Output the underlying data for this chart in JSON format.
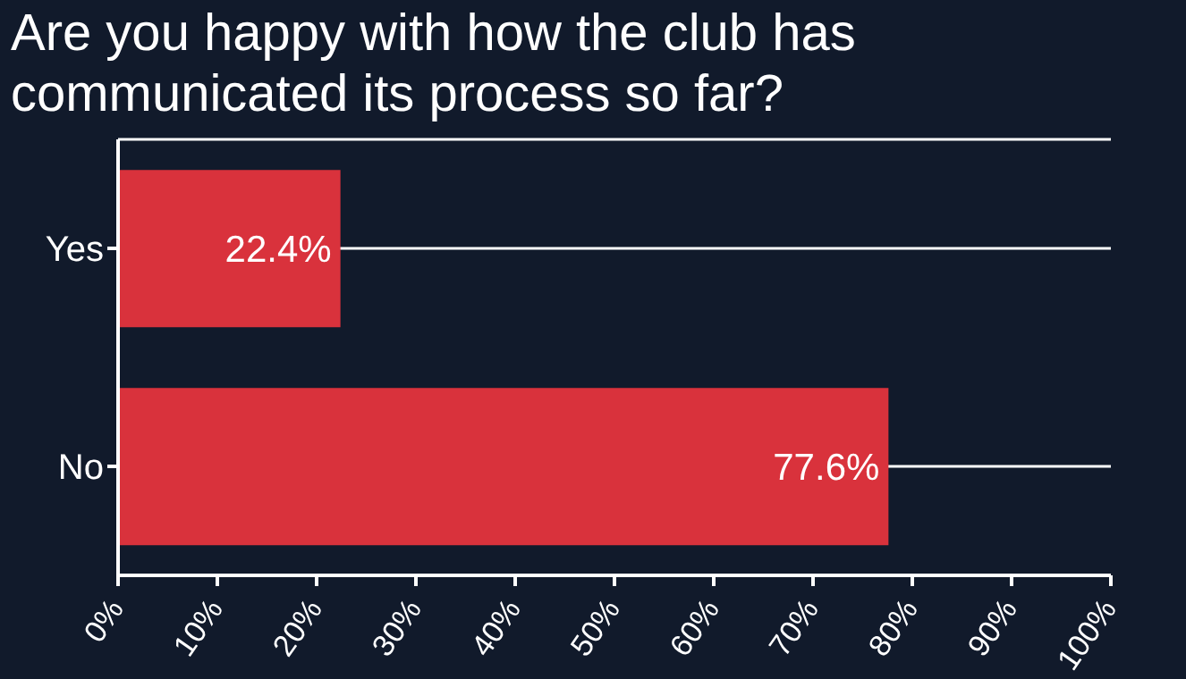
{
  "chart_data": {
    "type": "bar",
    "orientation": "horizontal",
    "title": "Are you happy with how the club has communicated its process so far?",
    "categories": [
      "Yes",
      "No"
    ],
    "values": [
      22.4,
      77.6
    ],
    "color": "#d9323c",
    "value_labels": [
      "22.4%",
      "77.6%"
    ],
    "xlim": [
      0,
      100
    ],
    "xticks": [
      {
        "value": 0,
        "label": "0%"
      },
      {
        "value": 10,
        "label": "10%"
      },
      {
        "value": 20,
        "label": "20%"
      },
      {
        "value": 30,
        "label": "30%"
      },
      {
        "value": 40,
        "label": "40%"
      },
      {
        "value": 50,
        "label": "50%"
      },
      {
        "value": 60,
        "label": "60%"
      },
      {
        "value": 70,
        "label": "70%"
      },
      {
        "value": 80,
        "label": "80%"
      },
      {
        "value": 90,
        "label": "90%"
      },
      {
        "value": 100,
        "label": "100%"
      }
    ],
    "grid": "y"
  }
}
